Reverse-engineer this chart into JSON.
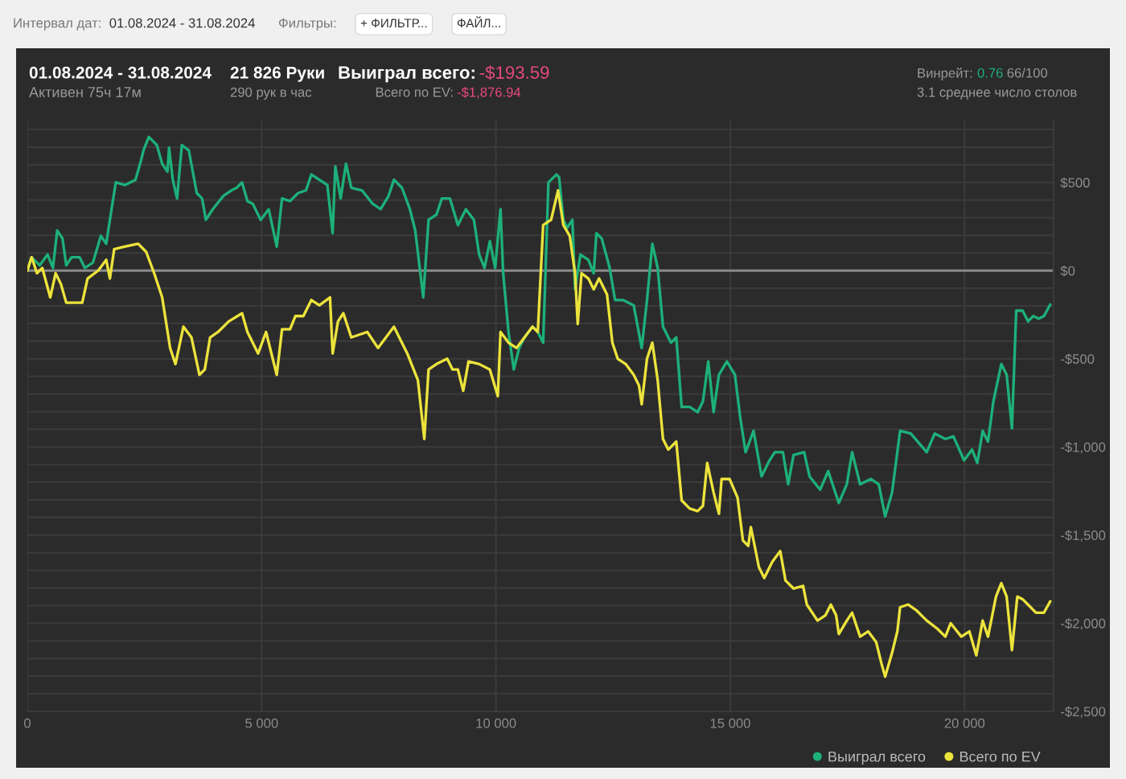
{
  "chart_data": {
    "type": "line",
    "title": "01.08.2024 - 31.08.2024",
    "subtitle": "Активен 75ч 17м",
    "annotations": [
      "Интервал дат:",
      "01.08.2024 - 31.08.2024",
      "Фильтры:",
      "+ ФИЛЬТР...",
      "ФАЙЛ...",
      "21 826 Руки",
      "290 рук в час",
      "Выиграл всего:",
      "-$193.59",
      "Всего по EV:",
      "-$1,876.94",
      "Винрейт:",
      "0.76",
      "66/100",
      "3.1 среднее число столов"
    ],
    "xlim": [
      0,
      21900
    ],
    "ylim": [
      -2500,
      850
    ],
    "xticks": [
      {
        "value": 0,
        "label": "0"
      },
      {
        "value": 5000,
        "label": "5 000"
      },
      {
        "value": 10000,
        "label": "10 000"
      },
      {
        "value": 15000,
        "label": "15 000"
      },
      {
        "value": 20000,
        "label": "20 000"
      }
    ],
    "yticks": [
      {
        "value": 800,
        "label": null
      },
      {
        "value": 700,
        "label": null
      },
      {
        "value": 600,
        "label": null
      },
      {
        "value": 500,
        "label": "$500"
      },
      {
        "value": 400,
        "label": null
      },
      {
        "value": 300,
        "label": null
      },
      {
        "value": 200,
        "label": null
      },
      {
        "value": 100,
        "label": null
      },
      {
        "value": 0,
        "label": "$0"
      },
      {
        "value": -100,
        "label": null
      },
      {
        "value": -200,
        "label": null
      },
      {
        "value": -300,
        "label": null
      },
      {
        "value": -400,
        "label": null
      },
      {
        "value": -500,
        "label": "-$500"
      },
      {
        "value": -600,
        "label": null
      },
      {
        "value": -700,
        "label": null
      },
      {
        "value": -800,
        "label": null
      },
      {
        "value": -900,
        "label": null
      },
      {
        "value": -1000,
        "label": "-$1,000"
      },
      {
        "value": -1100,
        "label": null
      },
      {
        "value": -1200,
        "label": null
      },
      {
        "value": -1300,
        "label": null
      },
      {
        "value": -1400,
        "label": null
      },
      {
        "value": -1500,
        "label": "-$1,500"
      },
      {
        "value": -1600,
        "label": null
      },
      {
        "value": -1700,
        "label": null
      },
      {
        "value": -1800,
        "label": null
      },
      {
        "value": -1900,
        "label": null
      },
      {
        "value": -2000,
        "label": "-$2,000"
      },
      {
        "value": -2100,
        "label": null
      },
      {
        "value": -2200,
        "label": null
      },
      {
        "value": -2300,
        "label": null
      },
      {
        "value": -2400,
        "label": null
      },
      {
        "value": -2500,
        "label": "-$2,500"
      }
    ],
    "grid": true,
    "legend": "bottom right",
    "marker": "none",
    "line_style": "solid",
    "ref_lines": [
      {
        "axis": "y",
        "value": 0,
        "label": null,
        "color": "#8a8a8a"
      }
    ],
    "series": [
      {
        "name": "Выиграл всего",
        "color": "#1db07a",
        "x": [
          0,
          91,
          262,
          432,
          546,
          637,
          750,
          830,
          944,
          1114,
          1228,
          1399,
          1569,
          1683,
          1797,
          1887,
          2081,
          2308,
          2422,
          2479,
          2592,
          2763,
          2877,
          2990,
          3024,
          3104,
          3195,
          3297,
          3445,
          3616,
          3729,
          3809,
          3957,
          4184,
          4355,
          4469,
          4582,
          4696,
          4810,
          4980,
          5151,
          5322,
          5435,
          5606,
          5776,
          5947,
          6061,
          6231,
          6402,
          6515,
          6572,
          6686,
          6800,
          6913,
          7141,
          7368,
          7539,
          7709,
          7823,
          7993,
          8164,
          8278,
          8448,
          8562,
          8732,
          8846,
          9017,
          9188,
          9358,
          9529,
          9642,
          9756,
          9870,
          9983,
          10097,
          10154,
          10268,
          10381,
          10495,
          10609,
          10779,
          10893,
          11007,
          11120,
          11291,
          11347,
          11438,
          11518,
          11631,
          11688,
          11802,
          11972,
          12086,
          12143,
          12257,
          12427,
          12541,
          12711,
          12939,
          13110,
          13223,
          13337,
          13451,
          13564,
          13735,
          13848,
          13962,
          14133,
          14303,
          14417,
          14531,
          14644,
          14758,
          14928,
          15099,
          15213,
          15327,
          15497,
          15668,
          15838,
          15952,
          16123,
          16236,
          16350,
          16577,
          16691,
          16918,
          17089,
          17316,
          17487,
          17600,
          17771,
          17998,
          18169,
          18305,
          18453,
          18624,
          18851,
          19192,
          19363,
          19590,
          19761,
          19988,
          20159,
          20272,
          20386,
          20500,
          20614,
          20784,
          20898,
          21011,
          21102,
          21239,
          21353,
          21466,
          21580,
          21694,
          21826
        ],
        "values": [
          0,
          76,
          30,
          91,
          15,
          227,
          182,
          30,
          76,
          76,
          15,
          45,
          197,
          152,
          348,
          500,
          485,
          515,
          621,
          682,
          758,
          712,
          606,
          561,
          697,
          515,
          409,
          712,
          682,
          439,
          409,
          288,
          348,
          424,
          455,
          470,
          500,
          394,
          379,
          288,
          348,
          136,
          409,
          394,
          439,
          455,
          545,
          515,
          485,
          212,
          591,
          409,
          606,
          470,
          455,
          379,
          348,
          424,
          515,
          470,
          348,
          227,
          -152,
          288,
          318,
          409,
          409,
          258,
          348,
          288,
          91,
          15,
          167,
          15,
          348,
          -15,
          -348,
          -561,
          -439,
          -379,
          -318,
          -348,
          -409,
          500,
          545,
          530,
          288,
          242,
          288,
          -106,
          91,
          61,
          -15,
          212,
          182,
          15,
          -167,
          -167,
          -197,
          -439,
          -167,
          152,
          15,
          -318,
          -409,
          -379,
          -773,
          -773,
          -803,
          -742,
          -515,
          -803,
          -591,
          -515,
          -591,
          -834,
          -1030,
          -909,
          -1167,
          -1076,
          -1030,
          -1030,
          -1212,
          -1046,
          -1030,
          -1167,
          -1243,
          -1137,
          -1318,
          -1212,
          -1030,
          -1212,
          -1182,
          -1212,
          -1394,
          -1258,
          -909,
          -924,
          -1030,
          -924,
          -955,
          -940,
          -1076,
          -1015,
          -1091,
          -909,
          -970,
          -743,
          -530,
          -591,
          -894,
          -227,
          -227,
          -288,
          -258,
          -273,
          -258,
          -194
        ]
      },
      {
        "name": "Всего по EV",
        "color": "#ece33c",
        "x": [
          0,
          91,
          205,
          319,
          489,
          603,
          716,
          830,
          1001,
          1171,
          1285,
          1512,
          1683,
          1762,
          1853,
          2081,
          2365,
          2536,
          2706,
          2877,
          3047,
          3161,
          3331,
          3502,
          3672,
          3786,
          3900,
          4070,
          4298,
          4582,
          4696,
          4924,
          5094,
          5322,
          5435,
          5606,
          5720,
          5890,
          6061,
          6231,
          6459,
          6515,
          6629,
          6743,
          6913,
          7254,
          7482,
          7823,
          8107,
          8334,
          8471,
          8562,
          8732,
          8960,
          9074,
          9188,
          9301,
          9415,
          9642,
          9870,
          10040,
          10097,
          10268,
          10438,
          10609,
          10779,
          10893,
          11007,
          11177,
          11325,
          11438,
          11574,
          11688,
          11745,
          11825,
          11972,
          12086,
          12200,
          12370,
          12484,
          12598,
          12768,
          12939,
          13052,
          13110,
          13223,
          13337,
          13451,
          13564,
          13678,
          13848,
          13962,
          14133,
          14303,
          14417,
          14508,
          14644,
          14758,
          14815,
          14985,
          15156,
          15270,
          15384,
          15440,
          15611,
          15725,
          15895,
          16066,
          16179,
          16350,
          16554,
          16634,
          16861,
          17032,
          17146,
          17259,
          17316,
          17487,
          17600,
          17771,
          17942,
          18112,
          18226,
          18305,
          18453,
          18566,
          18624,
          18794,
          18965,
          19192,
          19419,
          19590,
          19704,
          19931,
          20102,
          20250,
          20386,
          20500,
          20670,
          20784,
          20898,
          21011,
          21125,
          21239,
          21353,
          21523,
          21694,
          21826
        ],
        "values": [
          0,
          76,
          -15,
          15,
          -152,
          -15,
          -76,
          -182,
          -182,
          -182,
          -45,
          0,
          61,
          -45,
          121,
          136,
          152,
          106,
          -15,
          -152,
          -439,
          -530,
          -318,
          -379,
          -591,
          -561,
          -379,
          -348,
          -288,
          -242,
          -348,
          -470,
          -348,
          -591,
          -333,
          -333,
          -258,
          -258,
          -167,
          -197,
          -152,
          -470,
          -288,
          -242,
          -379,
          -348,
          -439,
          -318,
          -470,
          -621,
          -955,
          -561,
          -530,
          -500,
          -561,
          -561,
          -682,
          -515,
          -530,
          -561,
          -712,
          -348,
          -409,
          -439,
          -379,
          -318,
          -348,
          258,
          288,
          455,
          258,
          197,
          -15,
          -303,
          -15,
          -45,
          -106,
          -45,
          -136,
          -409,
          -500,
          -530,
          -591,
          -652,
          -758,
          -500,
          -409,
          -621,
          -955,
          -1015,
          -970,
          -1303,
          -1349,
          -1364,
          -1334,
          -1091,
          -1258,
          -1379,
          -1182,
          -1182,
          -1288,
          -1531,
          -1561,
          -1455,
          -1682,
          -1743,
          -1652,
          -1591,
          -1758,
          -1803,
          -1788,
          -1894,
          -1985,
          -1955,
          -1894,
          -1955,
          -2061,
          -1985,
          -1940,
          -2076,
          -2046,
          -2106,
          -2228,
          -2303,
          -2167,
          -2046,
          -1909,
          -1894,
          -1925,
          -1985,
          -2031,
          -2076,
          -2000,
          -2076,
          -2046,
          -2182,
          -1985,
          -2076,
          -1849,
          -1773,
          -1849,
          -2152,
          -1849,
          -1864,
          -1894,
          -1940,
          -1940,
          -1877
        ]
      }
    ]
  }
}
